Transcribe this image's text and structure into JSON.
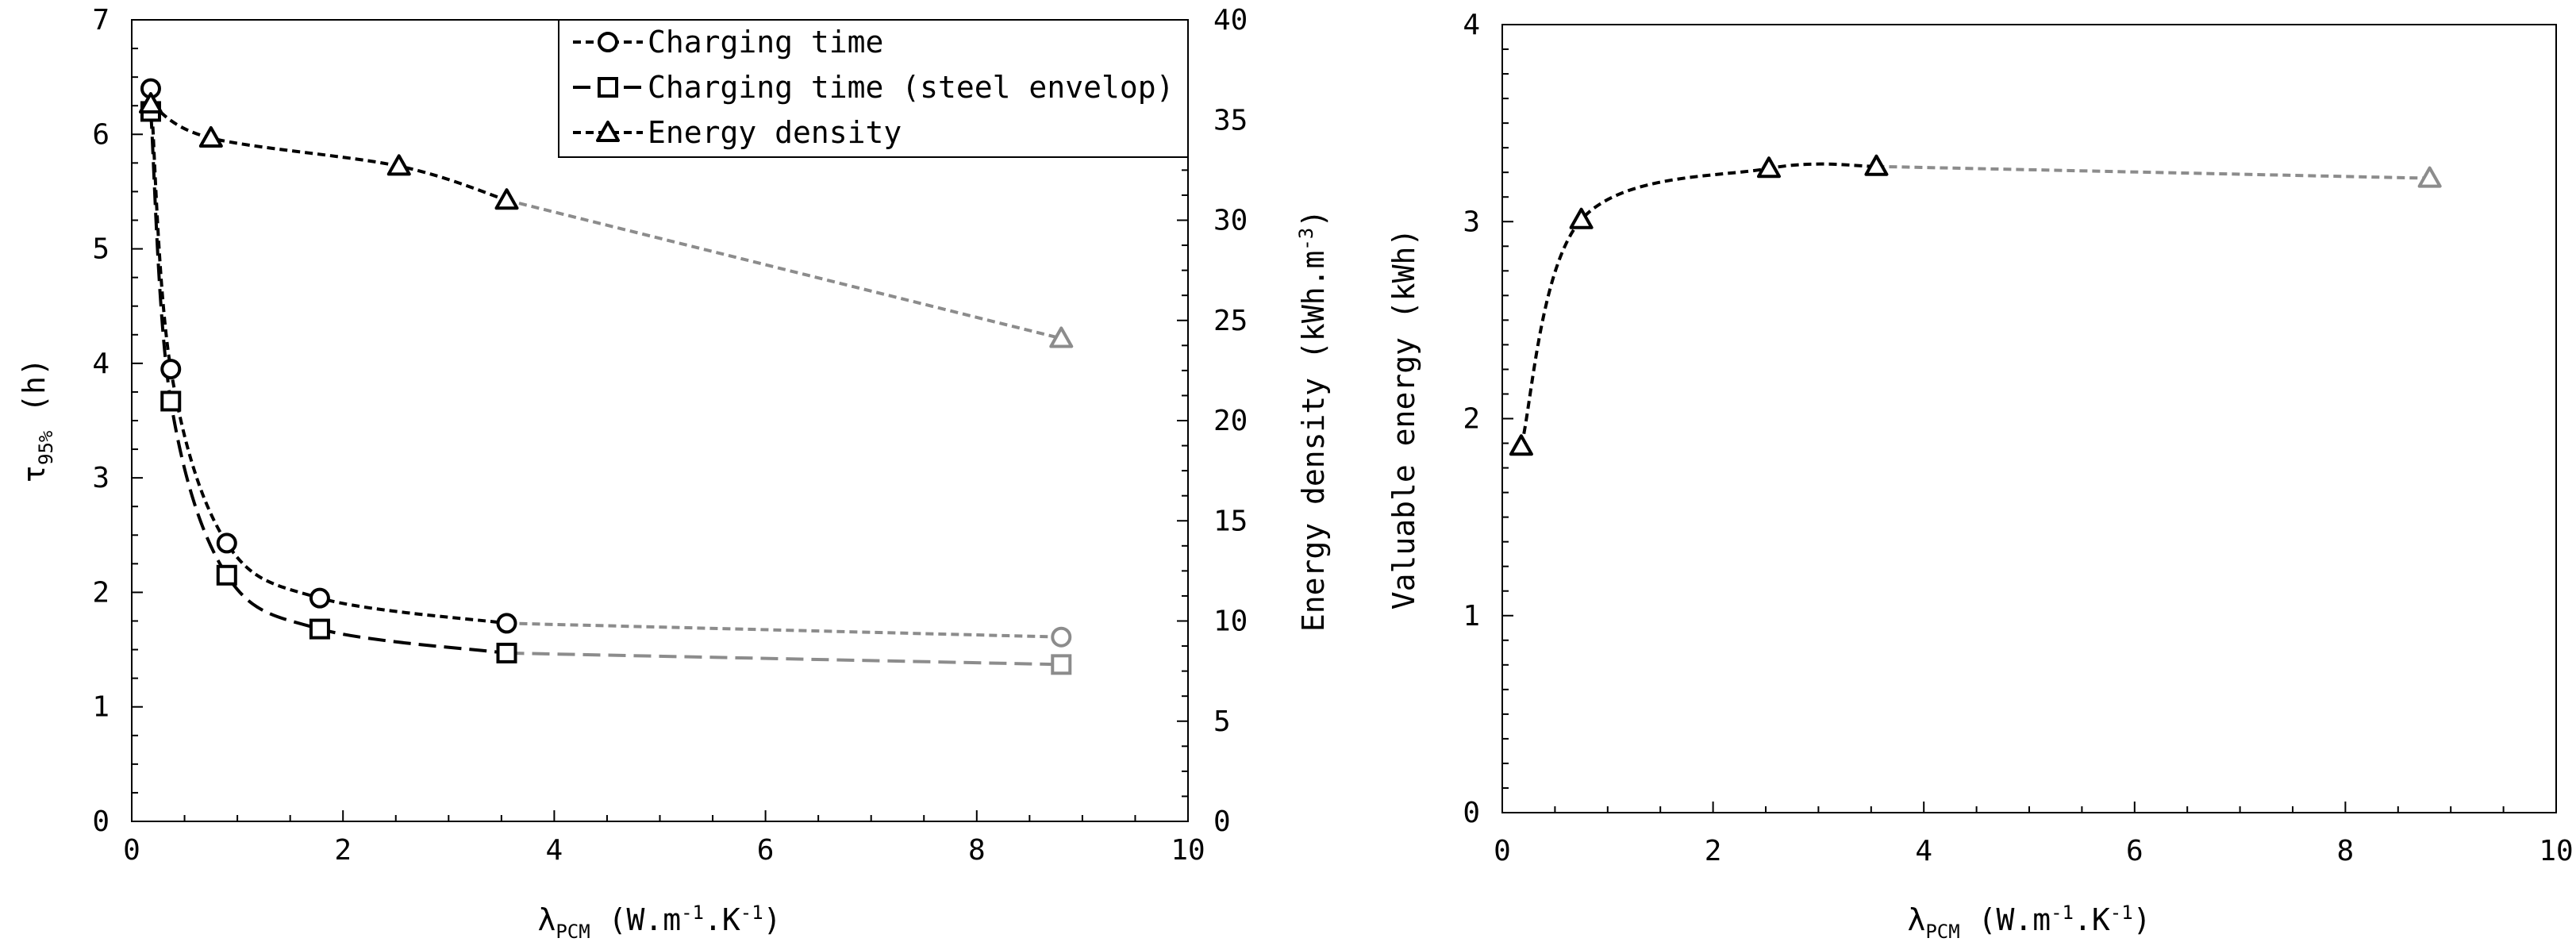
{
  "chart_data": [
    {
      "type": "line",
      "xlabel_main": "λ",
      "xlabel_sub": "PCM",
      "xlabel_rest": " (W.m",
      "xlabel_exp1": "-1",
      "xlabel_mid": ".K",
      "xlabel_exp2": "-1",
      "xlabel_end": ")",
      "ylabel_main": "τ",
      "ylabel_sub": "95%",
      "ylabel_rest": " (h)",
      "y2label_main": "Energy density (kWh.m",
      "y2label_exp": "-3",
      "y2label_end": ")",
      "xlim": [
        0,
        10
      ],
      "ylim": [
        0,
        7
      ],
      "y2lim": [
        0,
        40
      ],
      "xticks": [
        "0",
        "2",
        "4",
        "6",
        "8",
        "10"
      ],
      "yticks": [
        "0",
        "1",
        "2",
        "3",
        "4",
        "5",
        "6",
        "7"
      ],
      "y2ticks": [
        "0",
        "5",
        "10",
        "15",
        "20",
        "25",
        "30",
        "35",
        "40"
      ],
      "legend_position": "top-right",
      "series": [
        {
          "name": "Charging time",
          "marker": "circle",
          "axis": "left",
          "x": [
            0.18,
            0.37,
            0.9,
            1.78,
            3.55
          ],
          "y": [
            6.4,
            3.95,
            2.43,
            1.95,
            1.73
          ],
          "extrapolated": {
            "x": [
              3.55,
              8.8
            ],
            "y": [
              1.73,
              1.61
            ]
          }
        },
        {
          "name": "Charging time (steel envelop)",
          "marker": "square",
          "axis": "left",
          "x": [
            0.18,
            0.37,
            0.9,
            1.78,
            3.55
          ],
          "y": [
            6.2,
            3.67,
            2.15,
            1.68,
            1.47
          ],
          "extrapolated": {
            "x": [
              3.55,
              8.8
            ],
            "y": [
              1.47,
              1.37
            ]
          }
        },
        {
          "name": "Energy density",
          "marker": "triangle",
          "axis": "right",
          "x": [
            0.18,
            0.75,
            2.53,
            3.55
          ],
          "y": [
            35.8,
            34.1,
            32.7,
            31.0
          ],
          "extrapolated": {
            "x": [
              3.55,
              8.8
            ],
            "y": [
              31.0,
              24.1
            ]
          }
        }
      ]
    },
    {
      "type": "line",
      "xlabel_main": "λ",
      "xlabel_sub": "PCM",
      "xlabel_rest": " (W.m",
      "xlabel_exp1": "-1",
      "xlabel_mid": ".K",
      "xlabel_exp2": "-1",
      "xlabel_end": ")",
      "ylabel": "Valuable energy (kWh)",
      "xlim": [
        0,
        10
      ],
      "ylim": [
        0,
        4
      ],
      "xticks": [
        "0",
        "2",
        "4",
        "6",
        "8",
        "10"
      ],
      "yticks": [
        "0",
        "1",
        "2",
        "3",
        "4"
      ],
      "series": [
        {
          "name": "Valuable energy",
          "marker": "triangle",
          "x": [
            0.18,
            0.75,
            2.53,
            3.55
          ],
          "y": [
            1.86,
            3.01,
            3.27,
            3.28
          ],
          "extrapolated": {
            "x": [
              3.55,
              8.8
            ],
            "y": [
              3.28,
              3.22
            ]
          }
        }
      ]
    }
  ]
}
